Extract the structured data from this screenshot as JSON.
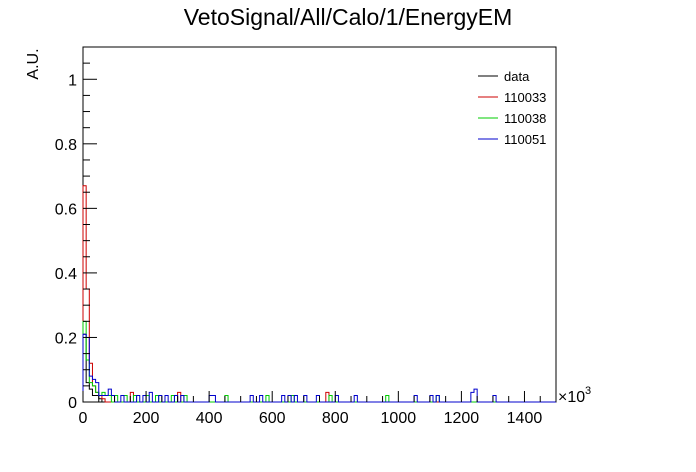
{
  "chart_data": {
    "type": "histogram",
    "title": "VetoSignal/All/Calo/1/EnergyEM",
    "xlabel": "",
    "ylabel": "A.U.",
    "x_multiplier": "×10",
    "x_multiplier_exponent": "3",
    "xlim": [
      0,
      1500
    ],
    "ylim": [
      0,
      1.1
    ],
    "bin_width": 10,
    "x_ticks": [
      0,
      200,
      400,
      600,
      800,
      1000,
      1200,
      1400
    ],
    "x_tick_labels": [
      "0",
      "200",
      "400",
      "600",
      "800",
      "1000",
      "1200",
      "1400"
    ],
    "y_ticks": [
      0,
      0.2,
      0.4,
      0.6,
      0.8,
      1
    ],
    "y_tick_labels": [
      "0",
      "0.2",
      "0.4",
      "0.6",
      "0.8",
      "1"
    ],
    "legend_position": "top-right",
    "series": [
      {
        "name": "data",
        "color": "#000000",
        "bins": [
          [
            0,
            0.21
          ],
          [
            10,
            0.06
          ],
          [
            20,
            0.04
          ],
          [
            30,
            0.02
          ],
          [
            40,
            0.02
          ],
          [
            50,
            0.01
          ]
        ]
      },
      {
        "name": "110033",
        "color": "#cc0000",
        "bins": [
          [
            0,
            0.67
          ],
          [
            10,
            0.35
          ],
          [
            20,
            0.12
          ],
          [
            30,
            0.05
          ],
          [
            40,
            0.03
          ],
          [
            50,
            0.02
          ],
          [
            60,
            0.01
          ],
          [
            150,
            0.03
          ],
          [
            300,
            0.03
          ],
          [
            770,
            0.03
          ]
        ]
      },
      {
        "name": "110038",
        "color": "#00cc00",
        "bins": [
          [
            0,
            0.25
          ],
          [
            10,
            0.13
          ],
          [
            20,
            0.06
          ],
          [
            30,
            0.05
          ],
          [
            40,
            0.03
          ],
          [
            50,
            0.02
          ],
          [
            60,
            0.03
          ],
          [
            70,
            0.02
          ],
          [
            80,
            0.02
          ],
          [
            100,
            0.02
          ],
          [
            130,
            0.02
          ],
          [
            160,
            0.02
          ],
          [
            200,
            0.02
          ],
          [
            230,
            0.02
          ],
          [
            280,
            0.02
          ],
          [
            320,
            0.02
          ],
          [
            450,
            0.02
          ],
          [
            580,
            0.02
          ],
          [
            660,
            0.02
          ],
          [
            780,
            0.02
          ],
          [
            960,
            0.02
          ],
          [
            1120,
            0.02
          ]
        ]
      },
      {
        "name": "110051",
        "color": "#0000cc",
        "bins": [
          [
            0,
            0.21
          ],
          [
            10,
            0.2
          ],
          [
            20,
            0.08
          ],
          [
            30,
            0.07
          ],
          [
            40,
            0.06
          ],
          [
            50,
            0.02
          ],
          [
            60,
            0.02
          ],
          [
            70,
            0.02
          ],
          [
            80,
            0.04
          ],
          [
            90,
            0.02
          ],
          [
            120,
            0.02
          ],
          [
            170,
            0.02
          ],
          [
            190,
            0.02
          ],
          [
            210,
            0.03
          ],
          [
            240,
            0.02
          ],
          [
            260,
            0.02
          ],
          [
            290,
            0.02
          ],
          [
            310,
            0.02
          ],
          [
            400,
            0.02
          ],
          [
            410,
            0.02
          ],
          [
            530,
            0.02
          ],
          [
            560,
            0.02
          ],
          [
            630,
            0.02
          ],
          [
            650,
            0.02
          ],
          [
            670,
            0.02
          ],
          [
            700,
            0.02
          ],
          [
            740,
            0.02
          ],
          [
            800,
            0.02
          ],
          [
            860,
            0.02
          ],
          [
            1050,
            0.02
          ],
          [
            1100,
            0.02
          ],
          [
            1120,
            0.02
          ],
          [
            1230,
            0.03
          ],
          [
            1240,
            0.04
          ],
          [
            1300,
            0.02
          ]
        ]
      }
    ]
  }
}
